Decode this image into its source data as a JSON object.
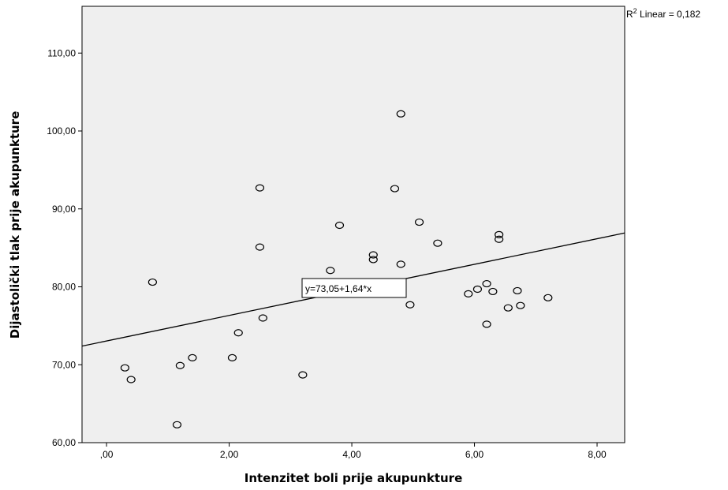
{
  "chart_data": {
    "type": "scatter",
    "xlabel": "Intenzitet boli prije akupunkture",
    "ylabel": "Dijastolički tlak prije akupunkture",
    "xlim": [
      -0.4,
      8.45
    ],
    "ylim": [
      60,
      116
    ],
    "x_ticks": [
      0,
      2,
      4,
      6,
      8
    ],
    "x_tick_labels": [
      ",00",
      "2,00",
      "4,00",
      "6,00",
      "8,00"
    ],
    "y_ticks": [
      60,
      70,
      80,
      90,
      100,
      110
    ],
    "y_tick_labels": [
      "60,00",
      "70,00",
      "80,00",
      "90,00",
      "100,00",
      "110,00"
    ],
    "grid": false,
    "background_color": "#efefef",
    "point_color": "#000000",
    "points": [
      {
        "x": 0.3,
        "y": 69.6
      },
      {
        "x": 0.4,
        "y": 68.1
      },
      {
        "x": 0.75,
        "y": 80.6
      },
      {
        "x": 1.15,
        "y": 62.3
      },
      {
        "x": 1.2,
        "y": 69.9
      },
      {
        "x": 1.4,
        "y": 70.9
      },
      {
        "x": 2.05,
        "y": 70.9
      },
      {
        "x": 2.15,
        "y": 74.1
      },
      {
        "x": 2.5,
        "y": 85.1
      },
      {
        "x": 2.5,
        "y": 92.7
      },
      {
        "x": 2.55,
        "y": 76.0
      },
      {
        "x": 3.2,
        "y": 68.7
      },
      {
        "x": 3.65,
        "y": 82.1
      },
      {
        "x": 3.8,
        "y": 87.9
      },
      {
        "x": 4.35,
        "y": 83.5
      },
      {
        "x": 4.35,
        "y": 84.1
      },
      {
        "x": 4.7,
        "y": 92.6
      },
      {
        "x": 4.8,
        "y": 102.2
      },
      {
        "x": 4.8,
        "y": 82.9
      },
      {
        "x": 4.95,
        "y": 77.7
      },
      {
        "x": 5.1,
        "y": 88.3
      },
      {
        "x": 5.4,
        "y": 85.6
      },
      {
        "x": 5.9,
        "y": 79.1
      },
      {
        "x": 6.05,
        "y": 79.7
      },
      {
        "x": 6.2,
        "y": 80.4
      },
      {
        "x": 6.2,
        "y": 75.2
      },
      {
        "x": 6.3,
        "y": 79.4
      },
      {
        "x": 6.4,
        "y": 86.7
      },
      {
        "x": 6.4,
        "y": 86.1
      },
      {
        "x": 6.55,
        "y": 77.3
      },
      {
        "x": 6.7,
        "y": 79.5
      },
      {
        "x": 6.75,
        "y": 77.6
      },
      {
        "x": 7.2,
        "y": 78.6
      }
    ],
    "fit_line": {
      "intercept": 73.05,
      "slope": 1.64
    },
    "annotations": {
      "equation": "y=73,05+1,64*x",
      "r2_superscript": "2",
      "r2_prefix": "R",
      "r2_text": " Linear = 0,182"
    }
  }
}
